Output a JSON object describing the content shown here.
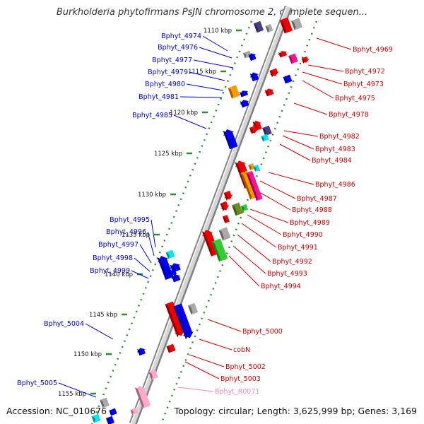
{
  "title": "Burkholderia phytofirmans PsJN chromosome 2, complete sequen...",
  "accession_label": "Accession: NC_010676",
  "topology_label": "Topology: circular; Length: 3,625,999 bp; Genes: 3,169",
  "colors": {
    "backbone": "#9a9a9a",
    "tick": "#2e8b2e",
    "left_label": "#0000cc",
    "right_label": "#cc0000",
    "rna_label": "#ee88bb",
    "blue": "#0000ee",
    "red": "#ee0000",
    "grey": "#aaaaaa",
    "orange": "#ff9900",
    "magenta": "#ff1493",
    "cyan": "#00e5ee",
    "navy": "#4b3c8a",
    "olive": "#6b8e23",
    "green": "#33cc33",
    "pink": "#ffaacc"
  },
  "kbp_ticks": [
    "1110 kbp",
    "1115 kbp",
    "1120 kbp",
    "1125 kbp",
    "1130 kbp",
    "1135 kbp",
    "1140 kbp",
    "1145 kbp",
    "1150 kbp",
    "1155 kbp"
  ],
  "left_labels": [
    "Bphyt_4974",
    "Bphyt_4976",
    "Bphyt_4977",
    "Bphyt_4979",
    "Bphyt_4980",
    "Bphyt_4981",
    "Bphyt_4985",
    "Bphyt_4995",
    "Bphyt_4996",
    "Bphyt_4997",
    "Bphyt_4998",
    "Bphyt_4999",
    "Bphyt_5004",
    "Bphyt_5005"
  ],
  "right_labels": [
    "Bphyt_4969",
    "Bphyt_4972",
    "Bphyt_4973",
    "Bphyt_4975",
    "Bphyt_4978",
    "Bphyt_4982",
    "Bphyt_4983",
    "Bphyt_4984",
    "Bphyt_4986",
    "Bphyt_4987",
    "Bphyt_4988",
    "Bphyt_4989",
    "Bphyt_4990",
    "Bphyt_4991",
    "Bphyt_4992",
    "Bphyt_4993",
    "Bphyt_4994",
    "Bphyt_5000",
    "cobN",
    "Bphyt_5002",
    "Bphyt_5003",
    "Bphyt_R0071"
  ]
}
